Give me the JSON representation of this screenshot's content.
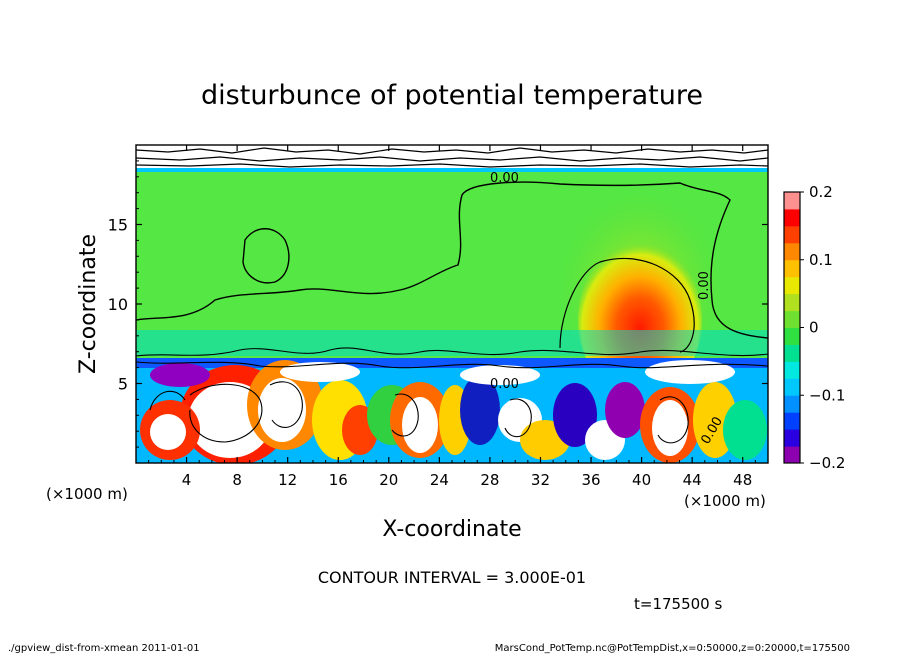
{
  "chart_data": {
    "type": "heatmap",
    "title": "disturbunce of potential temperature",
    "xlabel": "X-coordinate",
    "ylabel": "Z-coordinate",
    "x_unit": "(×1000 m)",
    "y_unit": "(×1000 m)",
    "xlim": [
      0,
      50
    ],
    "ylim": [
      0,
      20
    ],
    "x_ticks": [
      4,
      8,
      12,
      16,
      20,
      24,
      28,
      32,
      36,
      40,
      44,
      48
    ],
    "y_ticks": [
      5,
      10,
      15
    ],
    "colorbar": {
      "min": -0.2,
      "max": 0.2,
      "tick_values": [
        0.2,
        0.1,
        0,
        -0.1,
        -0.2
      ],
      "tick_labels": [
        "0.2",
        "0.1",
        "0",
        "−0.1",
        "−0.2"
      ],
      "colors": [
        "#8c00b0",
        "#2a00e0",
        "#0040ff",
        "#0090ff",
        "#00c8ff",
        "#00e8e0",
        "#00e090",
        "#30e040",
        "#70e030",
        "#b0e020",
        "#e8e800",
        "#ffc000",
        "#ff8800",
        "#ff4000",
        "#ff0000",
        "#ff9090"
      ]
    },
    "contour_labels": [
      "0.00",
      "0.00",
      "0.00",
      "0.00"
    ],
    "contour_interval_text": "CONTOUR INTERVAL = 3.000E-01",
    "time_text": "t=175500 s"
  },
  "footer": {
    "left": "./gpview_dist-from-xmean  2011-01-01",
    "right": "MarsCond_PotTemp.nc@PotTempDist,x=0:50000,z=0:20000,t=175500"
  }
}
